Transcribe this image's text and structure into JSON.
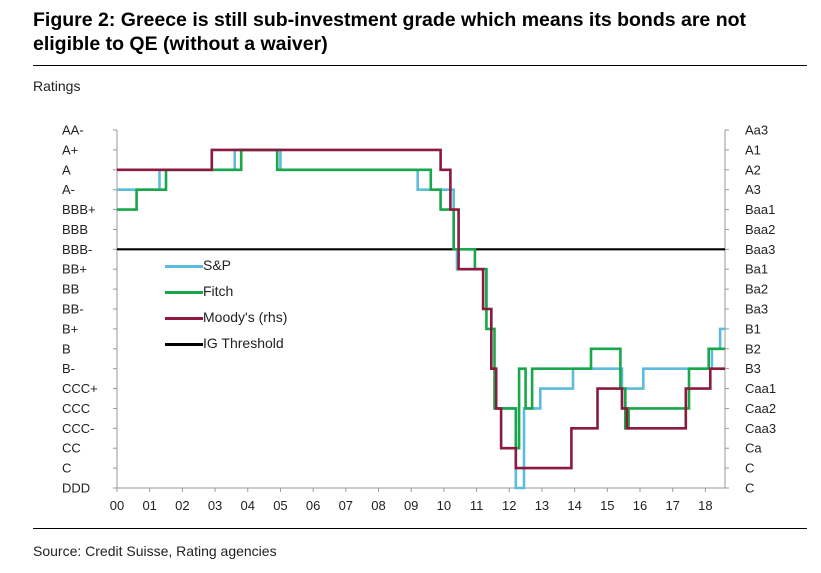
{
  "figure": {
    "title": "Figure 2: Greece is still sub-investment grade which means its bonds are not eligible to QE (without a waiver)",
    "ylabel": "Ratings",
    "source": "Source: Credit Suisse, Rating agencies"
  },
  "colors": {
    "sp": "#5bbcdc",
    "fitch": "#1aa64a",
    "moodys": "#8b1a3c",
    "threshold": "#000000"
  },
  "chart_data": {
    "type": "line",
    "title": "Figure 2: Greece is still sub-investment grade which means its bonds are not eligible to QE (without a waiver)",
    "ylabel": "Ratings",
    "xlabel": "",
    "x_ticks": [
      "00",
      "01",
      "02",
      "03",
      "04",
      "05",
      "06",
      "07",
      "08",
      "09",
      "10",
      "11",
      "12",
      "13",
      "14",
      "15",
      "16",
      "17",
      "18"
    ],
    "xlim": [
      2000,
      2018.6
    ],
    "y_left_ticks": [
      "AA-",
      "A+",
      "A",
      "A-",
      "BBB+",
      "BBB",
      "BBB-",
      "BB+",
      "BB",
      "BB-",
      "B+",
      "B",
      "B-",
      "CCC+",
      "CCC",
      "CCC-",
      "CC",
      "C",
      "DDD"
    ],
    "y_right_ticks": [
      "Aa3",
      "A1",
      "A2",
      "A3",
      "Baa1",
      "Baa2",
      "Baa3",
      "Ba1",
      "Ba2",
      "Ba3",
      "B1",
      "B2",
      "B3",
      "Caa1",
      "Caa2",
      "Caa3",
      "Ca",
      "C",
      "C"
    ],
    "ylim_note": "index 0 = top (AA-/Aa3), 18 = bottom (DDD/C)",
    "threshold": {
      "name": "IG Threshold",
      "level": "BBB-",
      "index": 6
    },
    "legend_position": "center-left",
    "series": [
      {
        "name": "S&P",
        "color": "#5bbcdc",
        "points": [
          [
            2000,
            3
          ],
          [
            2001.3,
            3
          ],
          [
            2001.3,
            2
          ],
          [
            2003.6,
            2
          ],
          [
            2003.6,
            1
          ],
          [
            2005,
            1
          ],
          [
            2005,
            2
          ],
          [
            2009.2,
            2
          ],
          [
            2009.2,
            3
          ],
          [
            2010.3,
            3
          ],
          [
            2010.3,
            6
          ],
          [
            2010.4,
            6
          ],
          [
            2010.4,
            7
          ],
          [
            2011.3,
            7
          ],
          [
            2011.3,
            9
          ],
          [
            2011.45,
            9
          ],
          [
            2011.45,
            12
          ],
          [
            2011.6,
            12
          ],
          [
            2011.6,
            14
          ],
          [
            2012.2,
            14
          ],
          [
            2012.2,
            18
          ],
          [
            2012.45,
            18
          ],
          [
            2012.45,
            14
          ],
          [
            2012.95,
            14
          ],
          [
            2012.95,
            13
          ],
          [
            2013.95,
            13
          ],
          [
            2013.95,
            12
          ],
          [
            2015.45,
            12
          ],
          [
            2015.45,
            14
          ],
          [
            2015.55,
            14
          ],
          [
            2015.55,
            13
          ],
          [
            2016.1,
            13
          ],
          [
            2016.1,
            12
          ],
          [
            2018.2,
            12
          ],
          [
            2018.2,
            11
          ],
          [
            2018.45,
            11
          ],
          [
            2018.45,
            10
          ],
          [
            2018.6,
            10
          ]
        ]
      },
      {
        "name": "Fitch",
        "color": "#1aa64a",
        "points": [
          [
            2000,
            4
          ],
          [
            2000.6,
            4
          ],
          [
            2000.6,
            3
          ],
          [
            2001.5,
            3
          ],
          [
            2001.5,
            2
          ],
          [
            2003.8,
            2
          ],
          [
            2003.8,
            1
          ],
          [
            2004.9,
            1
          ],
          [
            2004.9,
            2
          ],
          [
            2009.6,
            2
          ],
          [
            2009.6,
            3
          ],
          [
            2009.9,
            3
          ],
          [
            2009.9,
            4
          ],
          [
            2010.3,
            4
          ],
          [
            2010.3,
            6
          ],
          [
            2010.95,
            6
          ],
          [
            2010.95,
            7
          ],
          [
            2011.3,
            7
          ],
          [
            2011.3,
            10
          ],
          [
            2011.55,
            10
          ],
          [
            2011.55,
            14
          ],
          [
            2012.2,
            14
          ],
          [
            2012.2,
            16
          ],
          [
            2012.3,
            16
          ],
          [
            2012.3,
            12
          ],
          [
            2012.5,
            12
          ],
          [
            2012.5,
            14
          ],
          [
            2012.7,
            14
          ],
          [
            2012.7,
            12
          ],
          [
            2014.5,
            12
          ],
          [
            2014.5,
            11
          ],
          [
            2015.4,
            11
          ],
          [
            2015.4,
            13
          ],
          [
            2015.55,
            13
          ],
          [
            2015.55,
            15
          ],
          [
            2015.65,
            15
          ],
          [
            2015.65,
            14
          ],
          [
            2017.5,
            14
          ],
          [
            2017.5,
            12
          ],
          [
            2018.1,
            12
          ],
          [
            2018.1,
            11
          ],
          [
            2018.6,
            11
          ]
        ]
      },
      {
        "name": "Moody's (rhs)",
        "color": "#8b1a3c",
        "points": [
          [
            2000,
            2
          ],
          [
            2002.9,
            2
          ],
          [
            2002.9,
            1
          ],
          [
            2009.9,
            1
          ],
          [
            2009.9,
            2
          ],
          [
            2010.2,
            2
          ],
          [
            2010.2,
            4
          ],
          [
            2010.45,
            4
          ],
          [
            2010.45,
            7
          ],
          [
            2011.2,
            7
          ],
          [
            2011.2,
            9
          ],
          [
            2011.45,
            9
          ],
          [
            2011.45,
            12
          ],
          [
            2011.6,
            12
          ],
          [
            2011.6,
            14
          ],
          [
            2011.75,
            14
          ],
          [
            2011.75,
            16
          ],
          [
            2012.2,
            16
          ],
          [
            2012.2,
            17
          ],
          [
            2013.9,
            17
          ],
          [
            2013.9,
            15
          ],
          [
            2014.7,
            15
          ],
          [
            2014.7,
            13
          ],
          [
            2015.45,
            13
          ],
          [
            2015.45,
            14
          ],
          [
            2015.6,
            14
          ],
          [
            2015.6,
            15
          ],
          [
            2017.4,
            15
          ],
          [
            2017.4,
            13
          ],
          [
            2018.15,
            13
          ],
          [
            2018.15,
            12
          ],
          [
            2018.6,
            12
          ]
        ]
      }
    ]
  },
  "legend": [
    {
      "label": "S&P",
      "color": "#5bbcdc"
    },
    {
      "label": "Fitch",
      "color": "#1aa64a"
    },
    {
      "label": "Moody's (rhs)",
      "color": "#8b1a3c"
    },
    {
      "label": "IG Threshold",
      "color": "#000000"
    }
  ]
}
